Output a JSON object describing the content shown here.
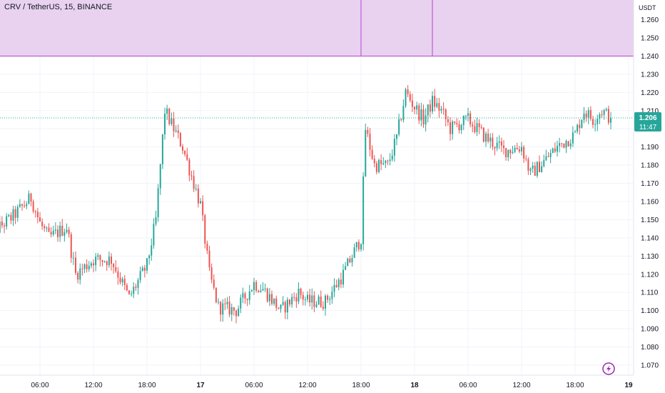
{
  "header": {
    "title": "CRV / TetherUS, 15, BINANCE"
  },
  "price_axis": {
    "unit": "USDT",
    "last_price": "1.206",
    "countdown": "11:47"
  },
  "colors": {
    "up": "#26a69a",
    "down": "#ef5350",
    "zone_fill": "#e9d2f0",
    "zone_line": "#b544d0",
    "price_line": "#26a69a",
    "grid": "#f0f3fa"
  },
  "chart_data": {
    "type": "candlestick",
    "title": "CRV / TetherUS, 15, BINANCE",
    "ylabel": "USDT",
    "ylim": [
      1.065,
      1.266
    ],
    "y_ticks": [
      "1.070",
      "1.080",
      "1.090",
      "1.100",
      "1.110",
      "1.120",
      "1.130",
      "1.140",
      "1.150",
      "1.160",
      "1.170",
      "1.180",
      "1.190",
      "1.200",
      "1.210",
      "1.220",
      "1.230",
      "1.240",
      "1.250",
      "1.260"
    ],
    "x_ticks": [
      {
        "label": "06:00",
        "hours": 6
      },
      {
        "label": "12:00",
        "hours": 12
      },
      {
        "label": "18:00",
        "hours": 18
      },
      {
        "label": "17",
        "hours": 24,
        "bold": true
      },
      {
        "label": "06:00",
        "hours": 30
      },
      {
        "label": "12:00",
        "hours": 36
      },
      {
        "label": "18:00",
        "hours": 42
      },
      {
        "label": "18",
        "hours": 48,
        "bold": true
      },
      {
        "label": "06:00",
        "hours": 54
      },
      {
        "label": "12:00",
        "hours": 60
      },
      {
        "label": "18:00",
        "hours": 66
      },
      {
        "label": "19",
        "hours": 72,
        "bold": true
      }
    ],
    "x_range_hours": [
      0,
      72
    ],
    "candle_interval": "15m",
    "last_price": 1.206,
    "resistance_zone": {
      "low": 1.24,
      "high": 1.266,
      "marker_hours": [
        42,
        50
      ]
    },
    "path": [
      [
        0,
        1.14
      ],
      [
        3,
        1.152
      ],
      [
        5,
        1.162
      ],
      [
        6,
        1.148
      ],
      [
        7,
        1.14
      ],
      [
        9,
        1.146
      ],
      [
        10,
        1.12
      ],
      [
        12,
        1.128
      ],
      [
        14,
        1.128
      ],
      [
        16,
        1.107
      ],
      [
        18,
        1.125
      ],
      [
        19,
        1.15
      ],
      [
        20,
        1.21
      ],
      [
        21,
        1.2
      ],
      [
        22,
        1.19
      ],
      [
        24,
        1.158
      ],
      [
        25,
        1.12
      ],
      [
        26,
        1.102
      ],
      [
        28,
        1.1
      ],
      [
        30,
        1.115
      ],
      [
        31,
        1.112
      ],
      [
        33,
        1.1
      ],
      [
        35,
        1.11
      ],
      [
        36,
        1.105
      ],
      [
        38,
        1.105
      ],
      [
        40,
        1.12
      ],
      [
        42,
        1.14
      ],
      [
        42.5,
        1.2
      ],
      [
        43.5,
        1.18
      ],
      [
        45,
        1.18
      ],
      [
        46,
        1.195
      ],
      [
        47,
        1.22
      ],
      [
        48,
        1.212
      ],
      [
        49,
        1.205
      ],
      [
        50,
        1.215
      ],
      [
        51,
        1.21
      ],
      [
        52,
        1.2
      ],
      [
        54,
        1.205
      ],
      [
        56,
        1.195
      ],
      [
        58,
        1.188
      ],
      [
        60,
        1.19
      ],
      [
        61,
        1.175
      ],
      [
        62.5,
        1.182
      ],
      [
        64,
        1.19
      ],
      [
        66,
        1.197
      ],
      [
        67,
        1.21
      ],
      [
        68,
        1.205
      ],
      [
        69,
        1.21
      ],
      [
        70,
        1.206
      ]
    ]
  }
}
